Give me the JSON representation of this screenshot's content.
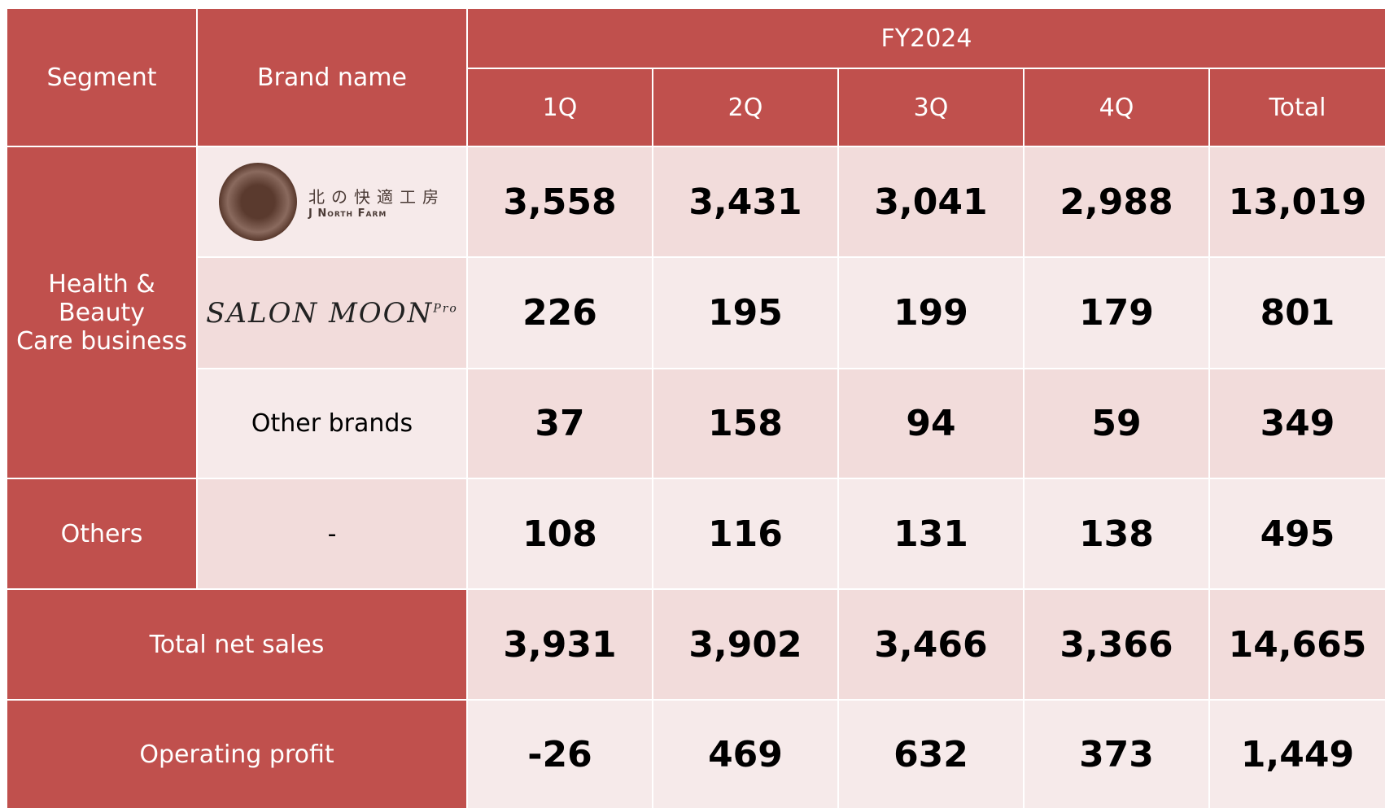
{
  "table": {
    "headers": {
      "segment": "Segment",
      "brand": "Brand name",
      "period": "FY2024",
      "columns": [
        "1Q",
        "2Q",
        "3Q",
        "4Q",
        "Total"
      ]
    },
    "segments": [
      {
        "lines": [
          "Health &",
          "Beauty",
          "Care business"
        ],
        "span": 3
      },
      {
        "lines": [
          "Others"
        ],
        "span": 1
      }
    ],
    "rows": [
      {
        "brand": {
          "name": "北の快適工房",
          "sub": "J North Farm"
        },
        "values": [
          "3,558",
          "3,431",
          "3,041",
          "2,988",
          "13,019"
        ]
      },
      {
        "brand": {
          "name": "SALON MOON",
          "sup": "Pro"
        },
        "values": [
          "226",
          "195",
          "199",
          "179",
          "801"
        ]
      },
      {
        "brand": {
          "name": "Other brands"
        },
        "values": [
          "37",
          "158",
          "94",
          "59",
          "349"
        ]
      },
      {
        "brand": {
          "name": "-"
        },
        "values": [
          "108",
          "116",
          "131",
          "138",
          "495"
        ]
      }
    ],
    "totals": [
      {
        "label": "Total net sales",
        "values": [
          "3,931",
          "3,902",
          "3,466",
          "3,366",
          "14,665"
        ]
      },
      {
        "label": "Operating profit",
        "values": [
          "-26",
          "469",
          "632",
          "373",
          "1,449"
        ]
      }
    ]
  }
}
